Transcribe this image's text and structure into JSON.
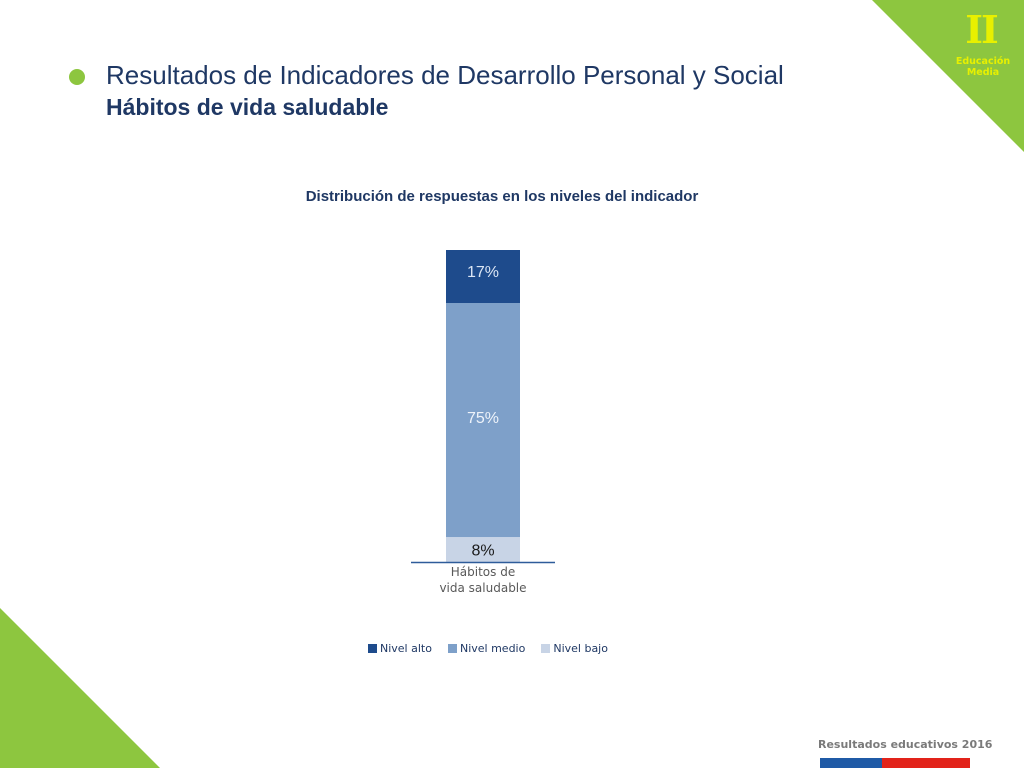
{
  "header": {
    "title_line1": "Resultados de Indicadores de Desarrollo Personal y Social",
    "title_line2": "Hábitos de vida saludable"
  },
  "badge": {
    "roman": "II",
    "line1": "Educación",
    "line2": "Media"
  },
  "chart_data": {
    "type": "bar",
    "stacked": true,
    "title": "Distribución de respuestas en los niveles del indicador",
    "categories": [
      "Hábitos de vida saludable"
    ],
    "category_label_lines": [
      "Hábitos de",
      "vida saludable"
    ],
    "series": [
      {
        "name": "Nivel bajo",
        "values": [
          8
        ],
        "label": "8%",
        "color": "#c8d4e6",
        "label_color": "#1a1a1a"
      },
      {
        "name": "Nivel medio",
        "values": [
          75
        ],
        "label": "75%",
        "color": "#7ea0c9",
        "label_color": "#eef3fa"
      },
      {
        "name": "Nivel alto",
        "values": [
          17
        ],
        "label": "17%",
        "color": "#1e4b8c",
        "label_color": "#dbe6f5"
      }
    ],
    "legend_order": [
      "Nivel alto",
      "Nivel medio",
      "Nivel bajo"
    ],
    "ylim": [
      0,
      100
    ],
    "legend_position": "bottom"
  },
  "footer": {
    "text": "Resultados educativos 2016"
  },
  "colors": {
    "accent_green": "#8dc63f",
    "title_navy": "#1f3864",
    "badge_yellow": "#e8f000",
    "footer_blue": "#1f5aa6",
    "footer_red": "#e2231a"
  }
}
